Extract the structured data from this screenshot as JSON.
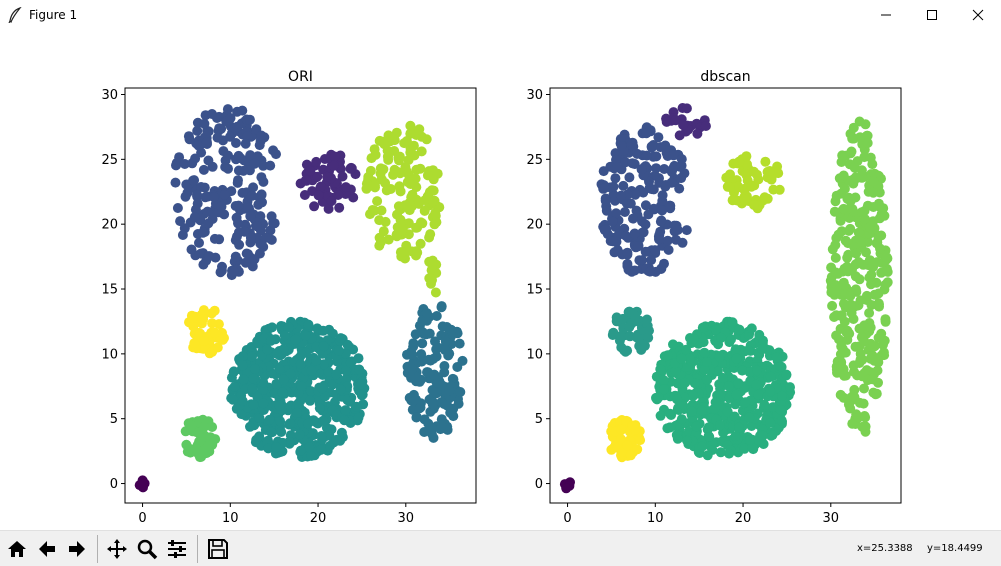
{
  "window": {
    "title": "Figure 1",
    "icon": "feather-icon",
    "controls": [
      "minimize-icon",
      "maximize-icon",
      "close-icon"
    ]
  },
  "toolbar": {
    "buttons": [
      "home-icon",
      "back-arrow-icon",
      "forward-arrow-icon",
      "pan-icon",
      "zoom-icon",
      "configure-subplots-icon",
      "save-icon"
    ],
    "coords_x": "x=25.3388",
    "coords_y": "y=18.4499"
  },
  "chart_data": [
    {
      "type": "scatter",
      "title": "ORI",
      "xlim": [
        -2,
        38
      ],
      "ylim": [
        -1.5,
        30.5
      ],
      "xticks": [
        0,
        10,
        20,
        30
      ],
      "yticks": [
        0,
        5,
        10,
        15,
        20,
        25,
        30
      ],
      "clusters": [
        {
          "color": "#3b528b",
          "shape": "crescent",
          "center": [
            9,
            21.8
          ],
          "x_range": [
            3.5,
            16
          ],
          "y_range": [
            16,
            29
          ],
          "n": 230
        },
        {
          "color": "#472d7b",
          "shape": "blob",
          "center": [
            21.5,
            23
          ],
          "x_range": [
            18,
            24.5
          ],
          "y_range": [
            21,
            25.5
          ],
          "n": 60
        },
        {
          "color": "#addc30",
          "shape": "blob",
          "center": [
            29.5,
            21.5
          ],
          "x_range": [
            25.5,
            34
          ],
          "y_range": [
            17,
            28
          ],
          "n": 140
        },
        {
          "color": "#addc30",
          "shape": "bridge",
          "center": [
            33,
            16
          ],
          "x_range": [
            32.5,
            33.5
          ],
          "y_range": [
            14.5,
            17.5
          ],
          "n": 10
        },
        {
          "color": "#2c728e",
          "shape": "blob",
          "center": [
            33,
            9
          ],
          "x_range": [
            30,
            36.5
          ],
          "y_range": [
            3.5,
            14
          ],
          "n": 140
        },
        {
          "color": "#fde725",
          "shape": "blob",
          "center": [
            7,
            12
          ],
          "x_range": [
            5,
            9.5
          ],
          "y_range": [
            10,
            13.5
          ],
          "n": 50
        },
        {
          "color": "#21918c",
          "shape": "disk",
          "center": [
            18,
            7.3
          ],
          "x_range": [
            10,
            25.5
          ],
          "y_range": [
            2,
            12.5
          ],
          "n": 500
        },
        {
          "color": "#5ec962",
          "shape": "blob",
          "center": [
            6.5,
            3.5
          ],
          "x_range": [
            4.5,
            8.5
          ],
          "y_range": [
            2,
            5
          ],
          "n": 50
        },
        {
          "color": "#440154",
          "shape": "point",
          "center": [
            0,
            0
          ],
          "x_range": [
            -0.4,
            0.4
          ],
          "y_range": [
            -0.4,
            0.4
          ],
          "n": 5
        }
      ]
    },
    {
      "type": "scatter",
      "title": "dbscan",
      "xlim": [
        -2,
        38
      ],
      "ylim": [
        -1.5,
        30.5
      ],
      "xticks": [
        0,
        10,
        20,
        30
      ],
      "yticks": [
        0,
        5,
        10,
        15,
        20,
        25,
        30
      ],
      "clusters": [
        {
          "color": "#3b528b",
          "shape": "crescent",
          "center": [
            9,
            21.8
          ],
          "x_range": [
            3.5,
            14
          ],
          "y_range": [
            16,
            27.5
          ],
          "n": 200
        },
        {
          "color": "#472d7b",
          "shape": "blob",
          "center": [
            13.5,
            28
          ],
          "x_range": [
            11,
            16
          ],
          "y_range": [
            26.5,
            29
          ],
          "n": 20
        },
        {
          "color": "#b5de2b",
          "shape": "blob",
          "center": [
            21.5,
            23
          ],
          "x_range": [
            18,
            24.5
          ],
          "y_range": [
            21,
            25.5
          ],
          "n": 60
        },
        {
          "color": "#7ad151",
          "shape": "blob",
          "center": [
            33,
            15
          ],
          "x_range": [
            30,
            36.5
          ],
          "y_range": [
            3.5,
            28
          ],
          "n": 290
        },
        {
          "color": "#2a9a8a",
          "shape": "blob",
          "center": [
            7,
            12
          ],
          "x_range": [
            5,
            9.5
          ],
          "y_range": [
            10,
            13.5
          ],
          "n": 50
        },
        {
          "color": "#29af7f",
          "shape": "disk",
          "center": [
            18,
            7.3
          ],
          "x_range": [
            10,
            25.5
          ],
          "y_range": [
            2,
            12.5
          ],
          "n": 500
        },
        {
          "color": "#fde725",
          "shape": "blob",
          "center": [
            6.5,
            3.5
          ],
          "x_range": [
            4.5,
            8.5
          ],
          "y_range": [
            2,
            5
          ],
          "n": 50
        },
        {
          "color": "#440154",
          "shape": "point",
          "center": [
            0,
            0
          ],
          "x_range": [
            -0.4,
            0.4
          ],
          "y_range": [
            -0.4,
            0.4
          ],
          "n": 5
        }
      ]
    }
  ]
}
